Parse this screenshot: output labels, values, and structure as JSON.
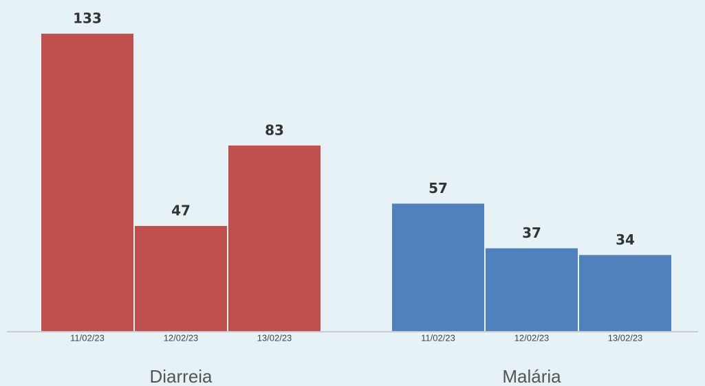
{
  "chart_data": {
    "type": "bar",
    "groups": [
      {
        "name": "Diarreia",
        "color": "#c0504d",
        "categories": [
          "11/02/23",
          "12/02/23",
          "13/02/23"
        ],
        "values": [
          133,
          47,
          83
        ]
      },
      {
        "name": "Malária",
        "color": "#4f81bd",
        "categories": [
          "11/02/23",
          "12/02/23",
          "13/02/23"
        ],
        "values": [
          57,
          37,
          34
        ]
      }
    ]
  }
}
